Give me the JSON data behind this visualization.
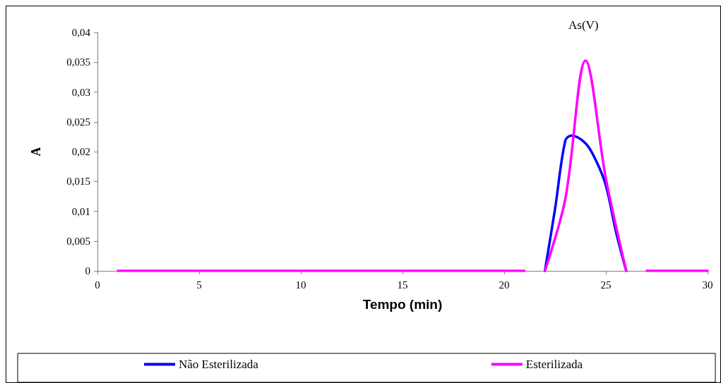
{
  "chart_data": {
    "type": "line",
    "xlabel": "Tempo (min)",
    "ylabel": "A",
    "annotations": [
      "As(V)"
    ],
    "xlim": [
      0,
      30
    ],
    "xticks": [
      0,
      5,
      10,
      15,
      20,
      25,
      30
    ],
    "ylim": [
      0,
      0.04
    ],
    "yticks": [
      0,
      {
        "value": 0.005,
        "label": "0,005"
      },
      {
        "value": 0.01,
        "label": "0,01"
      },
      {
        "value": 0.015,
        "label": "0,015"
      },
      {
        "value": 0.02,
        "label": "0,02"
      },
      {
        "value": 0.025,
        "label": "0,025"
      },
      {
        "value": 0.03,
        "label": "0,03"
      },
      {
        "value": 0.035,
        "label": "0,035"
      },
      {
        "value": 0.04,
        "label": "0,04"
      }
    ],
    "grid": false,
    "legend": "bottom",
    "marker": "none",
    "line_style": "solid",
    "series": [
      {
        "name": "Não Esterilizada",
        "color": "#0000ff",
        "x": [
          22,
          22.5,
          23,
          23.3,
          24,
          24.5,
          25,
          25.5,
          26
        ],
        "values": [
          0,
          0.0104,
          0.0218,
          0.0227,
          0.0214,
          0.0186,
          0.0143,
          0.0065,
          0
        ]
      },
      {
        "name": "Esterilizada",
        "color": "#ff00ff",
        "x": [
          1,
          5,
          10,
          15,
          20,
          21,
          21.5,
          22,
          23,
          24,
          25,
          26,
          26.5,
          27,
          30
        ],
        "values": [
          0,
          0,
          0,
          0,
          0,
          0,
          null,
          0,
          0.012,
          0.0353,
          0.0155,
          0,
          null,
          0,
          0
        ]
      }
    ]
  }
}
